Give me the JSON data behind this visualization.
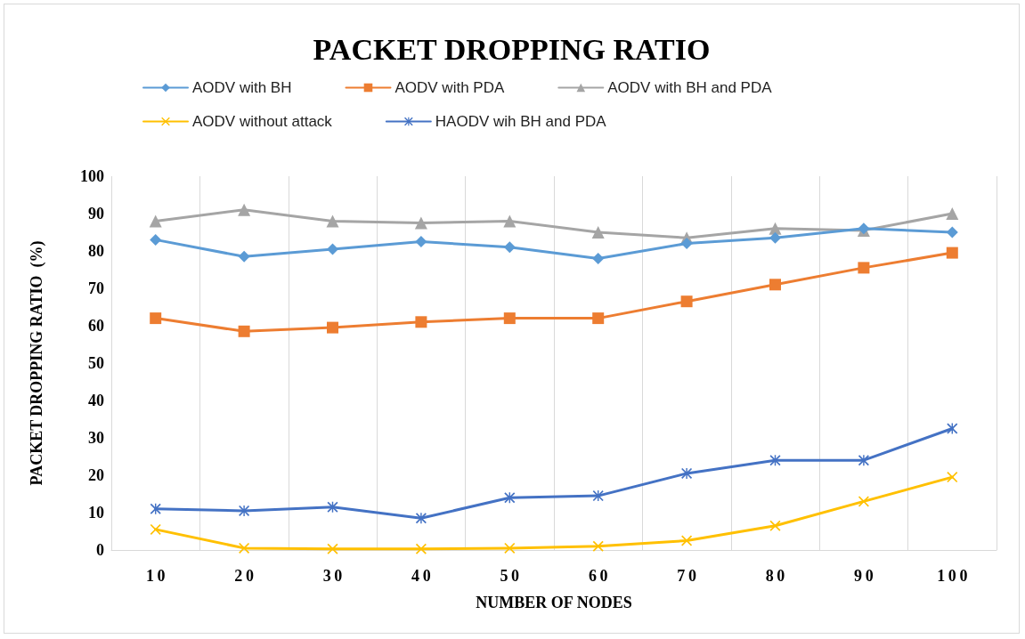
{
  "chart_data": {
    "type": "line",
    "title": "PACKET DROPPING RATIO",
    "xlabel": "NUMBER OF NODES",
    "ylabel": "PACKET DROPPING RATIO  (%)",
    "categories": [
      "10",
      "20",
      "30",
      "40",
      "50",
      "60",
      "70",
      "80",
      "90",
      "100"
    ],
    "ylim": [
      0,
      100
    ],
    "yticks": [
      0,
      10,
      20,
      30,
      40,
      50,
      60,
      70,
      80,
      90,
      100
    ],
    "grid": "x",
    "legend": "top",
    "line_style": "solid",
    "series": [
      {
        "name": "AODV with BH",
        "color": "#5b9bd5",
        "marker": "diamond",
        "values": [
          83,
          78.5,
          80.5,
          82.5,
          81,
          78,
          82,
          83.5,
          86,
          85
        ]
      },
      {
        "name": "AODV with PDA",
        "color": "#ed7d31",
        "marker": "square",
        "values": [
          62,
          58.5,
          59.5,
          61,
          62,
          62,
          66.5,
          71,
          75.5,
          79.5
        ]
      },
      {
        "name": "AODV with BH and PDA",
        "color": "#a5a5a5",
        "marker": "triangle",
        "values": [
          88,
          91,
          88,
          87.5,
          88,
          85,
          83.5,
          86,
          85.5,
          90
        ]
      },
      {
        "name": "AODV without attack",
        "color": "#ffc000",
        "marker": "cross",
        "values": [
          5.5,
          0.5,
          0.3,
          0.3,
          0.5,
          1,
          2.5,
          6.5,
          13,
          19.5
        ]
      },
      {
        "name": "HAODV wih BH and PDA",
        "color": "#4472c4",
        "marker": "star",
        "values": [
          11,
          10.5,
          11.5,
          8.5,
          14,
          14.5,
          20.5,
          24,
          24,
          32.5
        ]
      }
    ]
  }
}
